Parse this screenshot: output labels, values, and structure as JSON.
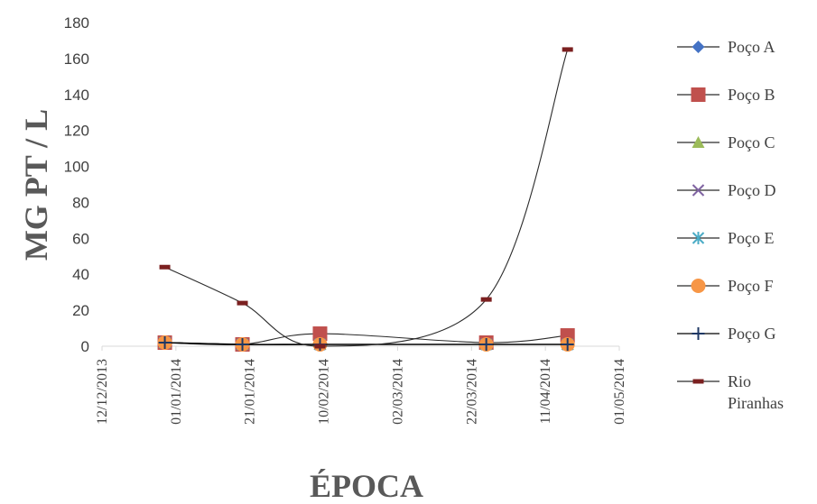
{
  "chart_data": {
    "type": "line",
    "title": "",
    "xlabel": "ÉPOCA",
    "ylabel": "MG PT / L",
    "xlim": [
      "2013-12-12",
      "2014-05-01"
    ],
    "ylim": [
      0,
      180
    ],
    "y_ticks": [
      0,
      20,
      40,
      60,
      80,
      100,
      120,
      140,
      160,
      180
    ],
    "x_tick_labels": [
      "12/12/2013",
      "01/01/2014",
      "21/01/2014",
      "10/02/2014",
      "02/03/2014",
      "22/03/2014",
      "11/04/2014",
      "01/05/2014"
    ],
    "grid": false,
    "smoothed": true,
    "legend_position": "right",
    "x": [
      "2013-12-29",
      "2014-01-19",
      "2014-02-09",
      "2014-03-26",
      "2014-04-17"
    ],
    "series": [
      {
        "name": "Poço A",
        "marker": "diamond",
        "color": "#4472C4",
        "values": [
          2,
          1,
          1,
          1,
          1
        ]
      },
      {
        "name": "Poço B",
        "marker": "square",
        "color": "#C0504D",
        "values": [
          2,
          1,
          7,
          2,
          6
        ]
      },
      {
        "name": "Poço C",
        "marker": "triangle",
        "color": "#9BBB59",
        "values": [
          2,
          1,
          1,
          1,
          1
        ]
      },
      {
        "name": "Poço D",
        "marker": "x",
        "color": "#8064A2",
        "values": [
          2,
          1,
          1,
          1,
          1
        ]
      },
      {
        "name": "Poço E",
        "marker": "star",
        "color": "#4BACC6",
        "values": [
          2,
          1,
          1,
          1,
          1
        ]
      },
      {
        "name": "Poço F",
        "marker": "circle",
        "color": "#F79646",
        "values": [
          2,
          1,
          1,
          1,
          1
        ]
      },
      {
        "name": "Poço G",
        "marker": "plus",
        "color": "#1F3864",
        "values": [
          2,
          1,
          1,
          1,
          1
        ]
      },
      {
        "name": "Rio Piranhas",
        "marker": "dash",
        "color": "#7B2020",
        "values": [
          44,
          24,
          0,
          26,
          165
        ]
      }
    ]
  }
}
